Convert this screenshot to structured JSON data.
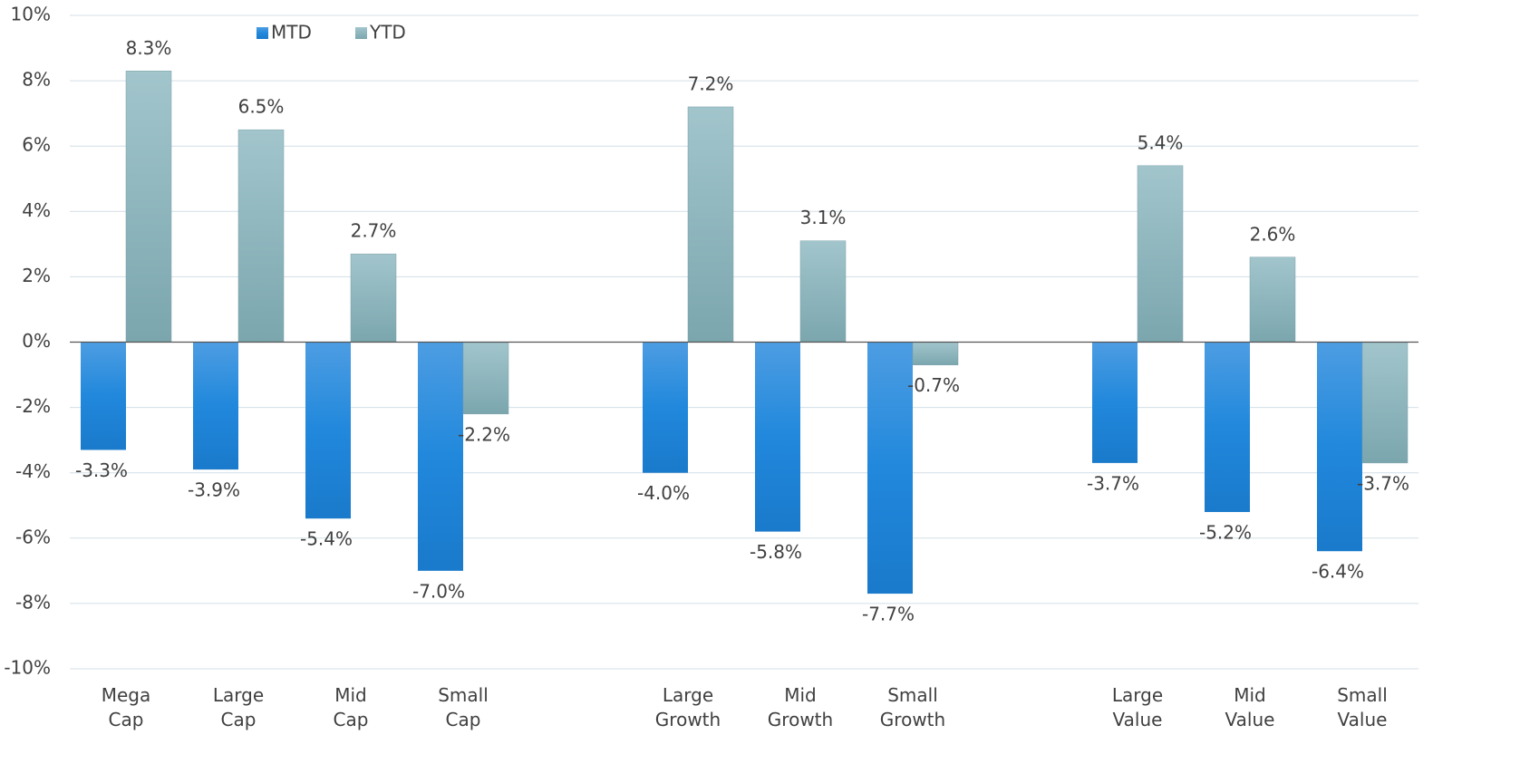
{
  "chart_data": {
    "type": "bar",
    "categories": [
      "Mega Cap",
      "Large Cap",
      "Mid Cap",
      "Small Cap",
      null,
      "Large Growth",
      "Mid Growth",
      "Small Growth",
      null,
      "Large Value",
      "Mid Value",
      "Small Value"
    ],
    "series": [
      {
        "name": "MTD",
        "color": "#1f85d6",
        "values": [
          -3.3,
          -3.9,
          -5.4,
          -7.0,
          null,
          -4.0,
          -5.8,
          -7.7,
          null,
          -3.7,
          -5.2,
          -6.4
        ],
        "value_labels": [
          "-3.3%",
          "-3.9%",
          "-5.4%",
          "-7.0%",
          null,
          "-4.0%",
          "-5.8%",
          "-7.7%",
          null,
          "-3.7%",
          "-5.2%",
          "-6.4%"
        ]
      },
      {
        "name": "YTD",
        "color": "#8fb5bd",
        "values": [
          8.3,
          6.5,
          2.7,
          -2.2,
          null,
          7.2,
          3.1,
          -0.7,
          null,
          5.4,
          2.6,
          -3.7
        ],
        "value_labels": [
          "8.3%",
          "6.5%",
          "2.7%",
          "-2.2%",
          null,
          "7.2%",
          "3.1%",
          "-0.7%",
          null,
          "5.4%",
          "2.6%",
          "-3.7%"
        ]
      }
    ],
    "ylim": [
      -10,
      10
    ],
    "yticks": [
      {
        "value": -10,
        "label": "-10%"
      },
      {
        "value": -8,
        "label": "-8%"
      },
      {
        "value": -6,
        "label": "-6%"
      },
      {
        "value": -4,
        "label": "-4%"
      },
      {
        "value": -2,
        "label": "-2%"
      },
      {
        "value": 0,
        "label": "0%"
      },
      {
        "value": 2,
        "label": "2%"
      },
      {
        "value": 4,
        "label": "4%"
      },
      {
        "value": 6,
        "label": "6%"
      },
      {
        "value": 8,
        "label": "8%"
      },
      {
        "value": 10,
        "label": "10%"
      }
    ],
    "grid": true,
    "legend": "top"
  }
}
